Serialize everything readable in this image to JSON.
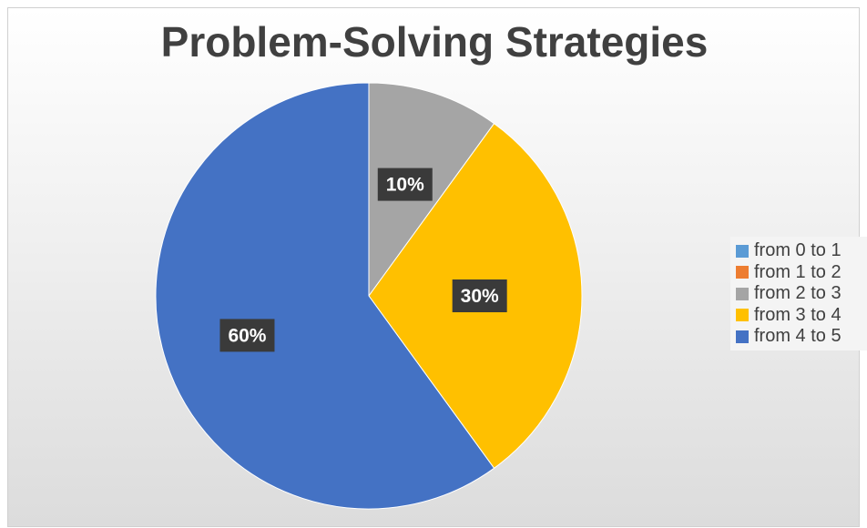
{
  "chart_data": {
    "type": "pie",
    "title": "Problem-Solving Strategies",
    "categories": [
      "from 0 to 1",
      "from 1 to 2",
      "from 2 to 3",
      "from 3 to 4",
      "from 4 to 5"
    ],
    "values": [
      0,
      0,
      10,
      30,
      60
    ],
    "labels": [
      "",
      "",
      "10%",
      "30%",
      "60%"
    ],
    "colors": [
      "#5b9bd5",
      "#ed7d31",
      "#a5a5a5",
      "#ffc000",
      "#4472c4"
    ],
    "start_angle": "12 o'clock",
    "direction": "clockwise",
    "legend_position": "right"
  }
}
